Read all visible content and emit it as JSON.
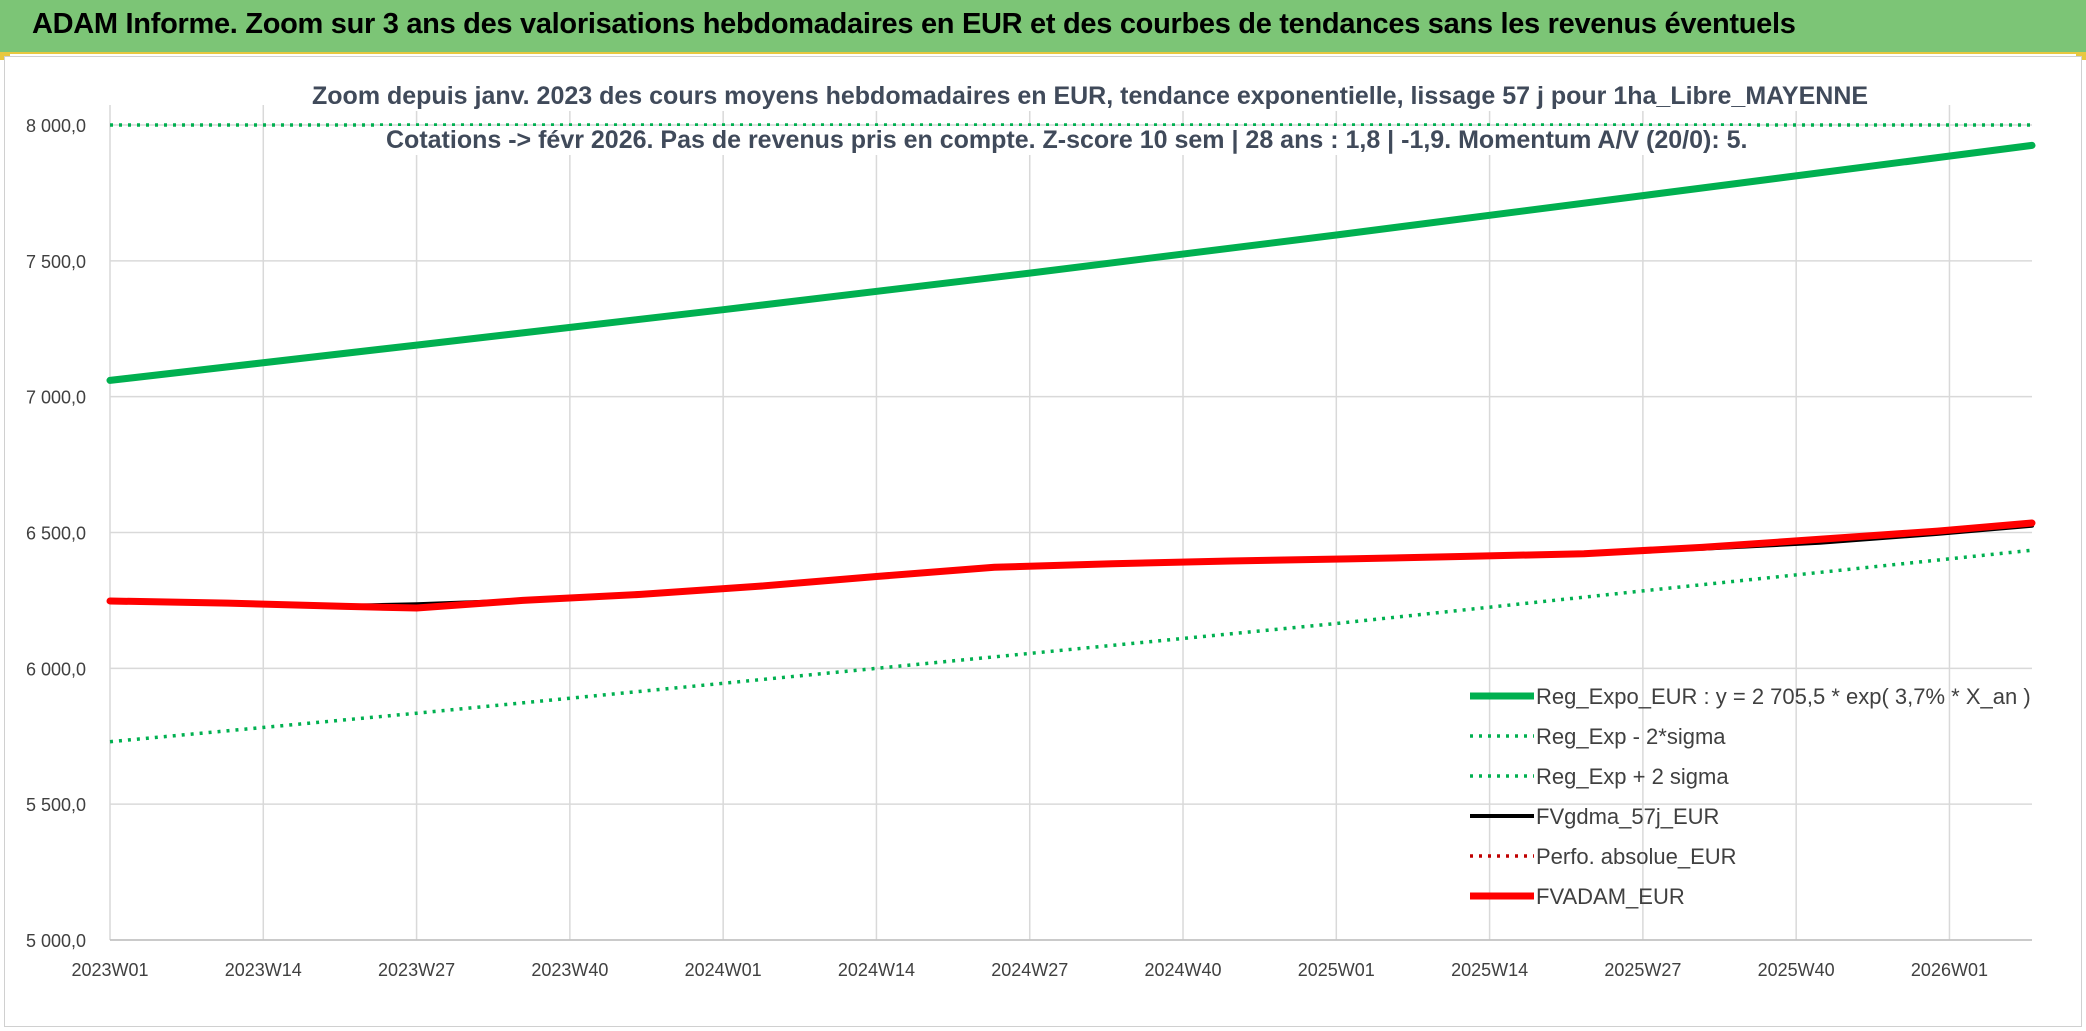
{
  "banner": {
    "title": "ADAM Informe. Zoom sur 3 ans des valorisations hebdomadaires en EUR et des courbes de tendances sans les revenus éventuels",
    "bg_color": "#7cc576",
    "accent_color": "#e8c840"
  },
  "chart_data": {
    "type": "line",
    "title_line1": "Zoom depuis janv. 2023 des cours moyens hebdomadaires en EUR, tendance exponentielle, lissage 57 j pour 1ha_Libre_MAYENNE",
    "title_line2": "Cotations -> févr 2026. Pas de revenus pris en compte. Z-score 10 sem | 28 ans : 1,8 | -1,9. Momentum A/V (20/0): 5.",
    "xlabel": "",
    "ylabel": "",
    "ylim": [
      5000,
      8000
    ],
    "xlim": [
      0,
      163
    ],
    "y_ticks": [
      5000,
      5500,
      6000,
      6500,
      7000,
      7500,
      8000
    ],
    "y_tick_labels": [
      "5 000,0",
      "5 500,0",
      "6 000,0",
      "6 500,0",
      "7 000,0",
      "7 500,0",
      "8 000,0"
    ],
    "x_ticks": [
      0,
      13,
      26,
      39,
      52,
      65,
      78,
      91,
      104,
      117,
      130,
      143,
      156
    ],
    "x_tick_labels": [
      "2023W01",
      "2023W14",
      "2023W27",
      "2023W40",
      "2024W01",
      "2024W14",
      "2024W27",
      "2024W40",
      "2025W01",
      "2025W14",
      "2025W27",
      "2025W40",
      "2026W01"
    ],
    "grid": true,
    "legend_position": "bottom-right",
    "series": [
      {
        "name": "Reg_Expo_EUR : y = 2 705,5 * exp( 3,7% *  X_an )",
        "style": "solid-thick",
        "color": "#00b050",
        "x": [
          0,
          26,
          52,
          78,
          104,
          130,
          163
        ],
        "values": [
          7060,
          7190,
          7320,
          7455,
          7595,
          7740,
          7925
        ]
      },
      {
        "name": "Reg_Exp - 2*sigma",
        "style": "dotted",
        "color": "#00b050",
        "x": [
          0,
          26,
          52,
          78,
          104,
          130,
          163
        ],
        "values": [
          5730,
          5835,
          5945,
          6055,
          6165,
          6285,
          6435
        ]
      },
      {
        "name": "Reg_Exp + 2 sigma",
        "style": "dotted",
        "color": "#00b050",
        "x": [
          0,
          163
        ],
        "values": [
          8000,
          8000
        ]
      },
      {
        "name": "FVgdma_57j_EUR",
        "style": "solid",
        "color": "#000000",
        "x": [
          0,
          10,
          20,
          26,
          35,
          45,
          55,
          65,
          75,
          85,
          95,
          105,
          115,
          125,
          135,
          145,
          155,
          163
        ],
        "values": [
          6248,
          6242,
          6230,
          6236,
          6250,
          6270,
          6300,
          6335,
          6370,
          6385,
          6395,
          6403,
          6412,
          6425,
          6440,
          6462,
          6495,
          6525
        ]
      },
      {
        "name": "Perfo. absolue_EUR",
        "style": "dotted",
        "color": "#c00000",
        "x": [
          0,
          10,
          20,
          26,
          35,
          45,
          55,
          65,
          75,
          85,
          95,
          105,
          115,
          125,
          135,
          145,
          155,
          163
        ],
        "values": [
          6248,
          6240,
          6228,
          6222,
          6250,
          6272,
          6302,
          6338,
          6372,
          6385,
          6395,
          6403,
          6412,
          6422,
          6445,
          6475,
          6505,
          6535
        ]
      },
      {
        "name": "FVADAM_EUR",
        "style": "solid-thick",
        "color": "#ff0000",
        "x": [
          0,
          10,
          20,
          26,
          35,
          45,
          55,
          65,
          75,
          85,
          95,
          105,
          115,
          125,
          135,
          145,
          155,
          163
        ],
        "values": [
          6248,
          6240,
          6228,
          6222,
          6250,
          6272,
          6302,
          6338,
          6372,
          6385,
          6395,
          6403,
          6412,
          6422,
          6445,
          6475,
          6505,
          6535
        ]
      }
    ]
  }
}
